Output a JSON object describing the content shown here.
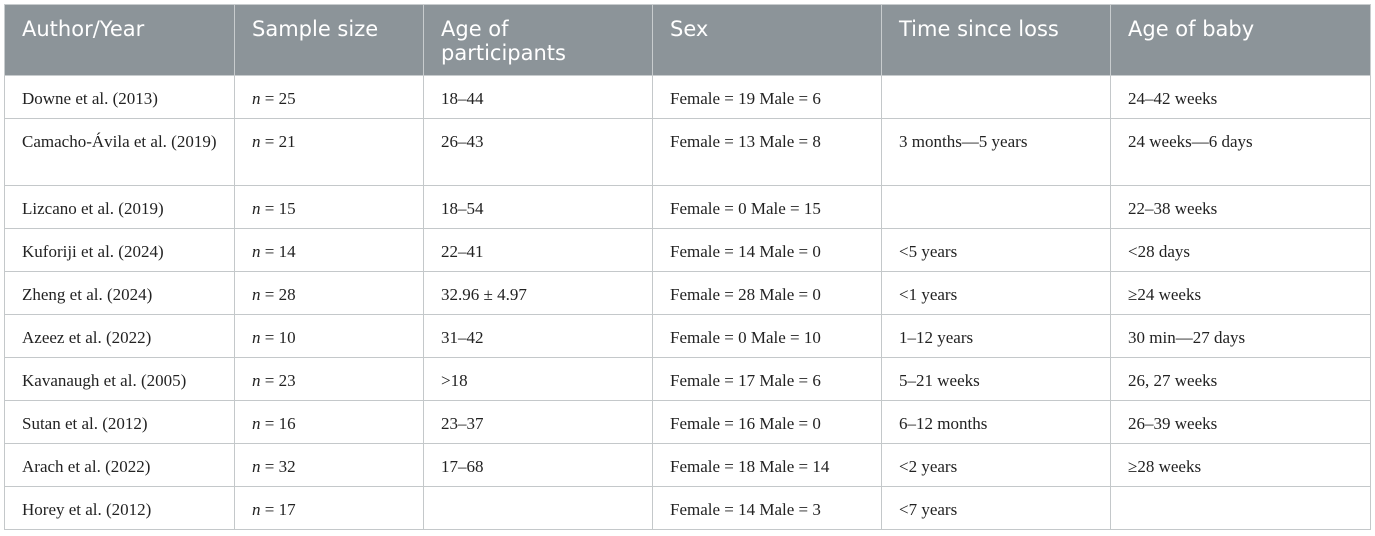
{
  "table": {
    "headers": [
      "Author/Year",
      "Sample size",
      "Age of participants",
      "Sex",
      "Time since loss",
      "Age of baby"
    ],
    "rows": [
      {
        "author": "Downe et al. (2013)",
        "n": "25",
        "age": "18–44",
        "sex": "Female = 19 Male = 6",
        "time": "",
        "baby": "24–42 weeks"
      },
      {
        "author": "Camacho-Ávila et al. (2019)",
        "n": "21",
        "age": "26–43",
        "sex": "Female = 13 Male = 8",
        "time": "3 months—5 years",
        "baby": "24 weeks—6 days"
      },
      {
        "author": "Lizcano et al. (2019)",
        "n": "15",
        "age": "18–54",
        "sex": "Female = 0 Male = 15",
        "time": "",
        "baby": "22–38 weeks"
      },
      {
        "author": "Kuforiji et al. (2024)",
        "n": "14",
        "age": "22–41",
        "sex": "Female = 14 Male = 0",
        "time": "<5 years",
        "baby": "<28 days"
      },
      {
        "author": "Zheng et al. (2024)",
        "n": "28",
        "age": "32.96 ± 4.97",
        "sex": "Female = 28 Male = 0",
        "time": "<1 years",
        "baby": "≥24 weeks"
      },
      {
        "author": "Azeez et al. (2022)",
        "n": "10",
        "age": "31–42",
        "sex": "Female = 0 Male = 10",
        "time": "1–12 years",
        "baby": "30 min—27 days"
      },
      {
        "author": "Kavanaugh et al. (2005)",
        "n": "23",
        "age": ">18",
        "sex": "Female = 17 Male = 6",
        "time": "5–21 weeks",
        "baby": "26, 27 weeks"
      },
      {
        "author": "Sutan et al. (2012)",
        "n": "16",
        "age": "23–37",
        "sex": "Female = 16 Male = 0",
        "time": "6–12 months",
        "baby": "26–39 weeks"
      },
      {
        "author": "Arach et al. (2022)",
        "n": "32",
        "age": "17–68",
        "sex": "Female = 18 Male = 14",
        "time": "<2 years",
        "baby": "≥28 weeks"
      },
      {
        "author": "Horey et al. (2012)",
        "n": "17",
        "age": "",
        "sex": "Female = 14 Male = 3",
        "time": "<7 years",
        "baby": ""
      }
    ]
  }
}
